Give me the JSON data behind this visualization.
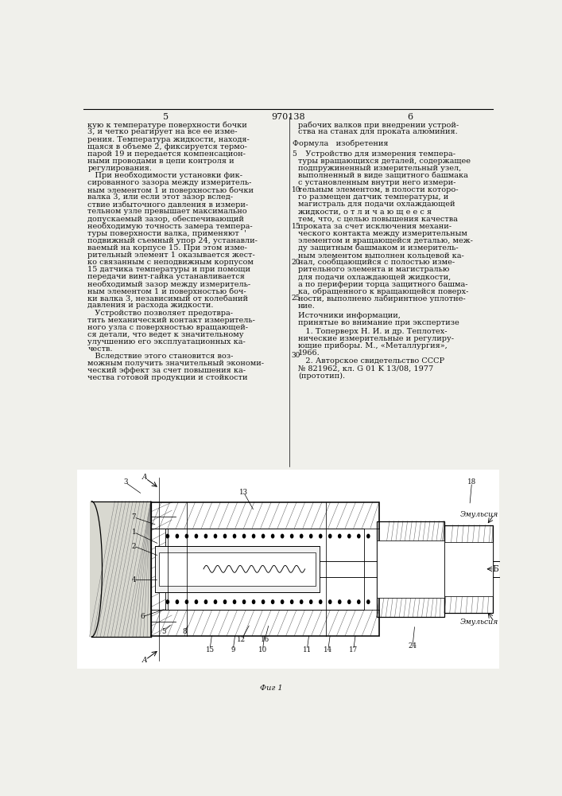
{
  "page_width": 7.07,
  "page_height": 10.0,
  "bg_color": "#f0f0eb",
  "text_color": "#111111",
  "font_size_main": 7.0,
  "page_num_left": "5",
  "page_num_center": "970138",
  "page_num_right": "6",
  "left_col_lines": [
    "кую к температуре поверхности бочки",
    "3, и четко реагирует на все ее изме-",
    "рения. Температура жидкости, находя-",
    "щаяся в объеме 2, фиксируется термо-",
    "парой 19 и передается компенсацион-",
    "ными проводами в цепи контроля и",
    "регулирования.",
    "   При необходимости установки фик-",
    "сированного зазора между измеритель-",
    "ным элементом 1 и поверхностью бочки",
    "валка 3, или если этот зазор вслед-",
    "ствие избыточного давления в измери-",
    "тельном узле превышает максимально",
    "допускаемый зазор, обеспечивающий",
    "необходимую точность замера темпера-",
    "туры поверхности валка, применяют  '",
    "подвижный съемный упор 24, устанавли-",
    "ваемый на корпусе 15. При этом изме-",
    "рительный элемент 1 оказывается жест-",
    "ко связанным с неподвижным корпусом",
    "15 датчика температуры и при помощи",
    "передачи винт-гайка устанавливается",
    "необходимый зазор между измеритель-",
    "ным элементом 1 и поверхностью боч-",
    "ки валка 3, независимый от колебаний",
    "давления и расхода жидкости.",
    "   Устройство позволяет предотвра-",
    "тить механический контакт измеритель-",
    "ного узла с поверхностью вращающей-"
  ],
  "left_col_cont": [
    "ся детали, что ведет к значительному",
    "улучшению его эксплуатационных ка-",
    "честв.",
    "   Вследствие этого становится воз-",
    "можным получить значительный экономи-",
    "ческий эффект за счет повышения ка-",
    "чества готовой продукции и стойкости"
  ],
  "right_col_top": [
    "рабочих валков при внедрении устрой-",
    "ства на станах для проката алюминия."
  ],
  "formula_title": "Формула   изобретения",
  "formula_text": [
    "   Устройство для измерения темпера-",
    "туры вращающихся деталей, содержащее",
    "подпружиненный измерительный узел,",
    "выполненный в виде защитного башмака",
    "с установленным внутри него измери-",
    "тельным элементом, в полости которо-",
    "го размещен датчик температуры, и",
    "магистраль для подачи охлаждающей",
    "жидкости, о т л и ч а ю щ е е с я",
    "тем, что, с целью повышения качества",
    "проката за счет исключения механи-",
    "ческого контакта между измерительным",
    "элементом и вращающейся деталью, меж-",
    "ду защитным башмаком и измеритель-",
    "ным элементом выполнен кольцевой ка-",
    "нал, сообщающийся с полостью изме-",
    "рительного элемента и магистралью",
    "для подачи охлаждающей жидкости,",
    "а по периферии торца защитного башма-",
    "ка, обращенного к вращающейся поверх-",
    "ности, выполнено лабиринтное уплотне-",
    "ние."
  ],
  "sources_title": "Источники информации,",
  "sources_subtitle": "принятые во внимание при экспертизе",
  "source1a": "   1. Топерверх Н. И. и др. Теплотех-",
  "source1b": "нические измерительные и регулиру-",
  "source1c": "ющие приборы. М., «Металлургия»,",
  "source1d": "1966.",
  "source2a": "   2. Авторское свидетельство СССР",
  "source2b": "№ 821962, кл. G 01 K 13/08, 1977",
  "source2c": "(прототип).",
  "fig_caption": "Фиг 1",
  "emulsiya": "Эмульсия",
  "b_label": "Б",
  "line_numbers": [
    "5",
    "10",
    "15",
    "20",
    "25",
    "30"
  ]
}
